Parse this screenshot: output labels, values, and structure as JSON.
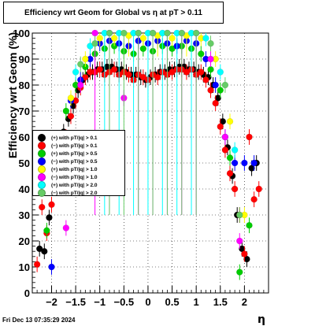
{
  "title": "Efficiency wrt Geom for Global vs   η  at pT > 0.11",
  "footer": "Fri Dec 13 07:35:29 2024",
  "chart_data": {
    "type": "scatter",
    "title": "Efficiency wrt Geom for Global vs   η  at pT > 0.11",
    "xlabel": "η",
    "ylabel": "Efficiency wrt Geom (%)",
    "xlim": [
      -2.4,
      2.5
    ],
    "ylim": [
      0,
      100
    ],
    "xticks": [
      -2,
      -1.5,
      -1,
      -0.5,
      0,
      0.5,
      1,
      1.5,
      2
    ],
    "xtick_labels": [
      "−2",
      "−1.5",
      "−1",
      "−0.5",
      "0",
      "0.5",
      "1",
      "1.5",
      "2"
    ],
    "yticks": [
      0,
      10,
      20,
      30,
      40,
      50,
      60,
      70,
      80,
      90,
      100
    ],
    "grid": true,
    "legend_position": "left-center",
    "series": [
      {
        "name": "(+) with pT/|q| > 0.1",
        "color": "#000000",
        "x": [
          -2.25,
          -2.15,
          -2.05,
          -1.95,
          -1.85,
          -1.75,
          -1.65,
          -1.55,
          -1.45,
          -1.35,
          -1.25,
          -1.15,
          -1.05,
          -0.95,
          -0.85,
          -0.75,
          -0.65,
          -0.55,
          -0.45,
          -0.35,
          -0.25,
          -0.15,
          -0.05,
          0.05,
          0.15,
          0.25,
          0.35,
          0.45,
          0.55,
          0.65,
          0.75,
          0.85,
          0.95,
          1.05,
          1.15,
          1.25,
          1.35,
          1.45,
          1.55,
          1.65,
          1.75,
          1.85,
          1.95,
          2.05,
          2.15,
          2.25
        ],
        "y": [
          17,
          16,
          29,
          46,
          55,
          62,
          67,
          72,
          78,
          82,
          84,
          85,
          86,
          86,
          87,
          87,
          86,
          86,
          85,
          84,
          84,
          83,
          82,
          83,
          84,
          85,
          85,
          86,
          86,
          87,
          87,
          86,
          86,
          85,
          84,
          83,
          80,
          75,
          66,
          56,
          45,
          30,
          17,
          13,
          48,
          50
        ]
      },
      {
        "name": "(−) with pT/|q| > 0.1",
        "color": "#ff0000",
        "x": [
          -2.3,
          -2.2,
          -2.1,
          -2.0,
          -1.9,
          -1.8,
          -1.7,
          -1.6,
          -1.5,
          -1.4,
          -1.3,
          -1.2,
          -1.1,
          -1.0,
          -0.9,
          -0.8,
          -0.7,
          -0.6,
          -0.5,
          -0.4,
          -0.3,
          -0.2,
          -0.1,
          0.0,
          0.1,
          0.2,
          0.3,
          0.4,
          0.5,
          0.6,
          0.7,
          0.8,
          0.9,
          1.0,
          1.1,
          1.2,
          1.3,
          1.4,
          1.5,
          1.6,
          1.7,
          1.8,
          1.9,
          2.0,
          2.1,
          2.2,
          2.3
        ],
        "y": [
          11,
          33,
          23,
          34,
          45,
          52,
          60,
          68,
          74,
          79,
          83,
          85,
          85,
          86,
          84,
          85,
          86,
          84,
          85,
          84,
          82,
          84,
          83,
          82,
          84,
          83,
          85,
          84,
          85,
          86,
          86,
          85,
          86,
          84,
          85,
          82,
          78,
          73,
          64,
          55,
          46,
          40,
          30,
          15,
          60,
          36,
          40
        ]
      },
      {
        "name": "(+) with pT/|q| > 0.5",
        "color": "#00cc00",
        "x": [
          -2.1,
          -1.9,
          -1.7,
          -1.5,
          -1.3,
          -1.1,
          -0.9,
          -0.7,
          -0.5,
          -0.3,
          -0.1,
          0.1,
          0.3,
          0.5,
          0.7,
          0.9,
          1.1,
          1.3,
          1.5,
          1.7,
          1.9,
          2.1
        ],
        "y": [
          24,
          50,
          70,
          80,
          87,
          92,
          94,
          95,
          93,
          92,
          94,
          93,
          95,
          94,
          95,
          94,
          92,
          86,
          78,
          52,
          8,
          26
        ]
      },
      {
        "name": "(−) with pT/|q| > 0.5",
        "color": "#0000ff",
        "x": [
          -2.0,
          -1.8,
          -1.6,
          -1.4,
          -1.2,
          -1.0,
          -0.8,
          -0.6,
          -0.4,
          -0.2,
          0.0,
          0.2,
          0.4,
          0.6,
          0.8,
          1.0,
          1.2,
          1.4,
          1.6,
          1.8,
          2.0,
          2.2
        ],
        "y": [
          10,
          55,
          74,
          82,
          90,
          96,
          97,
          96,
          95,
          97,
          96,
          97,
          96,
          95,
          97,
          96,
          90,
          80,
          60,
          50,
          50,
          50
        ]
      },
      {
        "name": "(+) with pT/|q| > 1.0",
        "color": "#ffff00",
        "x": [
          -1.9,
          -1.6,
          -1.3,
          -1.0,
          -0.7,
          -0.4,
          -0.1,
          0.2,
          0.5,
          0.8,
          1.1,
          1.4,
          1.7,
          2.0
        ],
        "y": [
          50,
          75,
          90,
          98,
          98,
          99,
          98,
          99,
          98,
          99,
          98,
          90,
          66,
          30
        ]
      },
      {
        "name": "(−) with pT/|q| > 1.0",
        "color": "#ff00ff",
        "x": [
          -1.7,
          -1.4,
          -1.1,
          -0.8,
          -0.5,
          -0.2,
          0.1,
          0.4,
          0.7,
          1.0,
          1.3,
          1.6,
          1.9
        ],
        "y": [
          25,
          80,
          100,
          100,
          75,
          100,
          100,
          100,
          100,
          100,
          90,
          60,
          20
        ]
      },
      {
        "name": "(+) with pT/|q| > 2.0",
        "color": "#00ffff",
        "x": [
          -1.5,
          -1.2,
          -0.9,
          -0.6,
          -0.3,
          0.0,
          0.3,
          0.6,
          0.9,
          1.2,
          1.5,
          1.8
        ],
        "y": [
          85,
          95,
          100,
          100,
          100,
          100,
          100,
          100,
          100,
          98,
          85,
          55
        ]
      },
      {
        "name": "(−) with pT/|q| > 2.0",
        "color": "#66cc66",
        "x": [
          -1.4,
          -1.1,
          -0.8,
          -0.5,
          -0.2,
          0.1,
          0.4,
          0.7,
          1.0,
          1.3,
          1.6,
          1.9
        ],
        "y": [
          88,
          96,
          100,
          100,
          100,
          100,
          100,
          100,
          100,
          96,
          80,
          30
        ]
      }
    ]
  }
}
